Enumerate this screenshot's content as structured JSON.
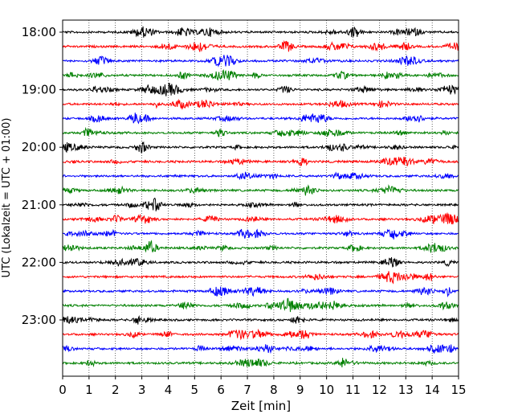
{
  "chart_data": {
    "type": "line",
    "xlabel": "Zeit  [min]",
    "ylabel": "UTC (Lokalzeit = UTC + 01:00)",
    "xlim": [
      0,
      15
    ],
    "x_ticks": [
      "0",
      "1",
      "2",
      "3",
      "4",
      "5",
      "6",
      "7",
      "8",
      "9",
      "10",
      "11",
      "12",
      "13",
      "14",
      "15"
    ],
    "y_ticks": [
      "18:00",
      "19:00",
      "20:00",
      "21:00",
      "22:00",
      "23:00"
    ],
    "grid": "vertical dotted at each minute",
    "trace_start_utc": "18:00",
    "trace_interval_minutes": 15,
    "trace_count": 24,
    "trace_colors": [
      "#000000",
      "#ff0000",
      "#0000ff",
      "#008000"
    ]
  }
}
